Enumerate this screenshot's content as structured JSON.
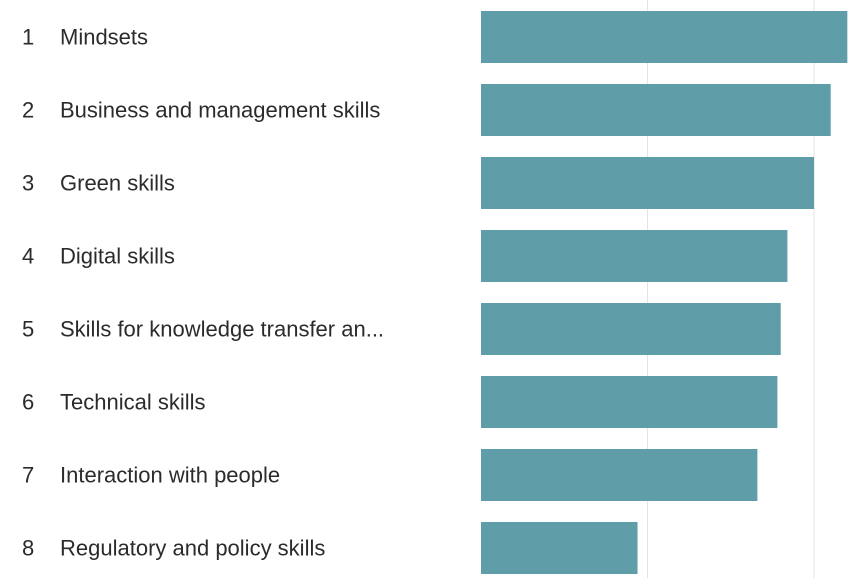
{
  "chart_data": {
    "type": "bar",
    "orientation": "horizontal",
    "grid": true,
    "bar_color": "#5f9ea8",
    "gridline_color": "#e4e4e4",
    "xlim": [
      0,
      1.12
    ],
    "gridlines": [
      0.5,
      1.0
    ],
    "items": [
      {
        "rank": "1",
        "label": "Mindsets",
        "value": 1.1
      },
      {
        "rank": "2",
        "label": "Business and management skills",
        "value": 1.05
      },
      {
        "rank": "3",
        "label": "Green skills",
        "value": 1.0
      },
      {
        "rank": "4",
        "label": "Digital skills",
        "value": 0.92
      },
      {
        "rank": "5",
        "label": "Skills for knowledge transfer an...",
        "value": 0.9
      },
      {
        "rank": "6",
        "label": "Technical skills",
        "value": 0.89
      },
      {
        "rank": "7",
        "label": "Interaction with people",
        "value": 0.83
      },
      {
        "rank": "8",
        "label": "Regulatory and policy skills",
        "value": 0.47
      }
    ]
  }
}
